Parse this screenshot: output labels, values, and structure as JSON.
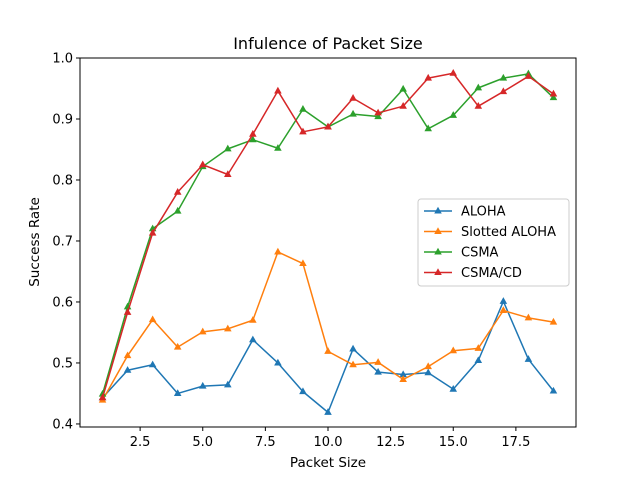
{
  "chart_data": {
    "type": "line",
    "title": "Infulence of Packet Size",
    "xlabel": "Packet Size",
    "ylabel": "Success Rate",
    "xlim": [
      0.1,
      19.9
    ],
    "ylim": [
      0.395,
      1.0
    ],
    "xticks": [
      2.5,
      5.0,
      7.5,
      10.0,
      12.5,
      15.0,
      17.5
    ],
    "xtick_labels": [
      "2.5",
      "5.0",
      "7.5",
      "10.0",
      "12.5",
      "15.0",
      "17.5"
    ],
    "yticks": [
      0.4,
      0.5,
      0.6,
      0.7,
      0.8,
      0.9,
      1.0
    ],
    "ytick_labels": [
      "0.4",
      "0.5",
      "0.6",
      "0.7",
      "0.8",
      "0.9",
      "1.0"
    ],
    "grid": false,
    "legend_position": "center-right",
    "marker": "triangle-up",
    "x": [
      1,
      2,
      3,
      4,
      5,
      6,
      7,
      8,
      9,
      10,
      11,
      12,
      13,
      14,
      15,
      16,
      17,
      18,
      19
    ],
    "series": [
      {
        "name": "ALOHA",
        "color": "#1f77b4",
        "values": [
          0.443,
          0.488,
          0.497,
          0.45,
          0.462,
          0.464,
          0.538,
          0.5,
          0.453,
          0.419,
          0.523,
          0.485,
          0.481,
          0.484,
          0.457,
          0.504,
          0.601,
          0.506,
          0.454
        ]
      },
      {
        "name": "Slotted ALOHA",
        "color": "#ff7f0e",
        "values": [
          0.439,
          0.512,
          0.571,
          0.526,
          0.551,
          0.556,
          0.57,
          0.682,
          0.663,
          0.519,
          0.497,
          0.501,
          0.473,
          0.494,
          0.52,
          0.524,
          0.586,
          0.574,
          0.567
        ]
      },
      {
        "name": "CSMA",
        "color": "#2ca02c",
        "values": [
          0.449,
          0.592,
          0.72,
          0.749,
          0.822,
          0.851,
          0.866,
          0.852,
          0.916,
          0.887,
          0.908,
          0.904,
          0.949,
          0.884,
          0.906,
          0.951,
          0.967,
          0.974,
          0.935
        ]
      },
      {
        "name": "CSMA/CD",
        "color": "#d62728",
        "values": [
          0.443,
          0.583,
          0.713,
          0.78,
          0.825,
          0.809,
          0.875,
          0.946,
          0.879,
          0.887,
          0.934,
          0.91,
          0.921,
          0.967,
          0.975,
          0.921,
          0.945,
          0.97,
          0.941
        ]
      }
    ]
  }
}
